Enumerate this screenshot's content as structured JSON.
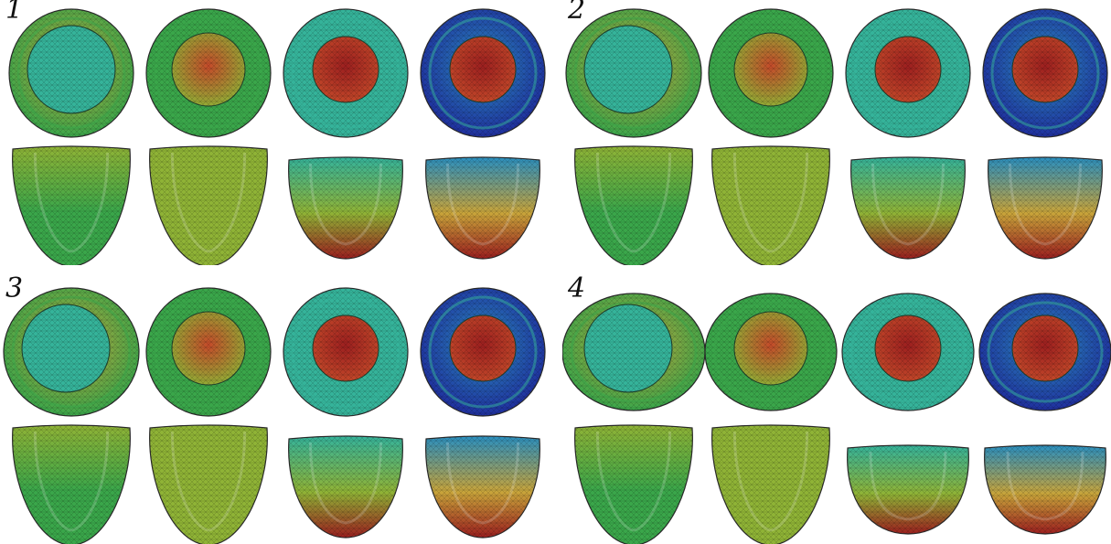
{
  "figure": {
    "panels": [
      {
        "label": "1",
        "variant": 0
      },
      {
        "label": "2",
        "variant": 1
      },
      {
        "label": "3",
        "variant": 2
      },
      {
        "label": "4",
        "variant": 3
      }
    ],
    "colormap": [
      "#1f2f9e",
      "#2a8fbf",
      "#35b39a",
      "#3aa64a",
      "#8fb336",
      "#c8a43a",
      "#c44a2a",
      "#9c1f1f"
    ]
  }
}
